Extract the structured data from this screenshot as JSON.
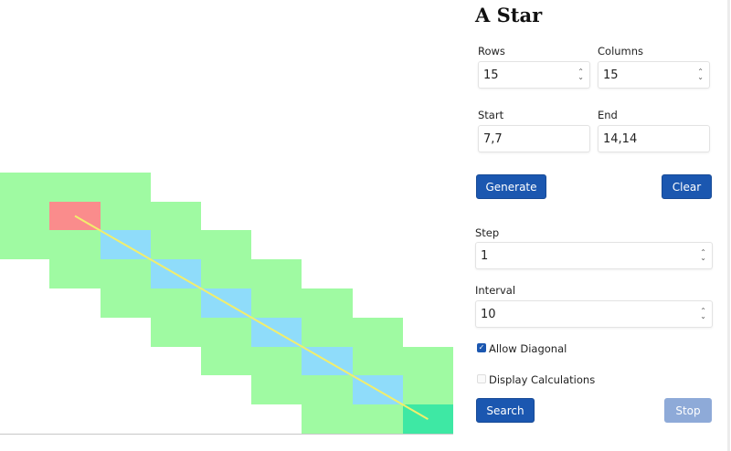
{
  "grid": {
    "rows": 15,
    "columns": 15,
    "start": [
      7,
      7
    ],
    "end": [
      14,
      14
    ],
    "path": [
      [
        7,
        7
      ],
      [
        8,
        8
      ],
      [
        9,
        9
      ],
      [
        10,
        10
      ],
      [
        11,
        11
      ],
      [
        12,
        12
      ],
      [
        13,
        13
      ],
      [
        14,
        14
      ]
    ],
    "open": [
      [
        6,
        6
      ],
      [
        6,
        7
      ],
      [
        6,
        8
      ],
      [
        7,
        6
      ],
      [
        7,
        8
      ],
      [
        7,
        9
      ],
      [
        8,
        6
      ],
      [
        8,
        7
      ],
      [
        8,
        9
      ],
      [
        8,
        10
      ],
      [
        9,
        7
      ],
      [
        9,
        8
      ],
      [
        9,
        10
      ],
      [
        9,
        11
      ],
      [
        10,
        8
      ],
      [
        10,
        9
      ],
      [
        10,
        11
      ],
      [
        10,
        12
      ],
      [
        11,
        9
      ],
      [
        11,
        10
      ],
      [
        11,
        12
      ],
      [
        11,
        13
      ],
      [
        12,
        10
      ],
      [
        12,
        11
      ],
      [
        12,
        13
      ],
      [
        12,
        14
      ],
      [
        13,
        11
      ],
      [
        13,
        12
      ],
      [
        13,
        14
      ],
      [
        14,
        12
      ],
      [
        14,
        13
      ]
    ],
    "colors": {
      "start": "#fa8c8c",
      "end": "#3ee8a4",
      "path": "#8fdcfa",
      "open": "#9ffaa2",
      "line": "#f2ee6c",
      "empty": "#ffffff"
    }
  },
  "panel": {
    "title": "A Star",
    "rows_label": "Rows",
    "rows_value": "15",
    "columns_label": "Columns",
    "columns_value": "15",
    "start_label": "Start",
    "start_value": "7,7",
    "end_label": "End",
    "end_value": "14,14",
    "generate_label": "Generate",
    "clear_label": "Clear",
    "step_label": "Step",
    "step_value": "1",
    "interval_label": "Interval",
    "interval_value": "10",
    "allow_diagonal_label": "Allow Diagonal",
    "allow_diagonal_checked": true,
    "display_calculations_label": "Display Calculations",
    "display_calculations_checked": false,
    "search_label": "Search",
    "stop_label": "Stop",
    "stop_disabled": true
  }
}
